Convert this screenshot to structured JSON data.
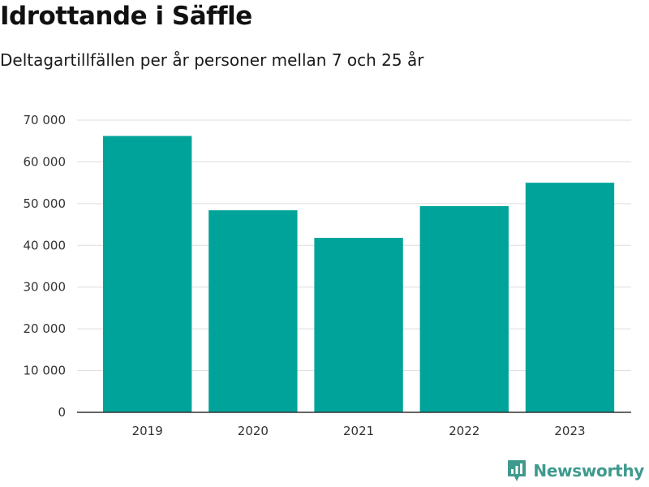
{
  "header": {
    "title": "Idrottande i Säffle",
    "subtitle": "Deltagartillfällen per år personer mellan 7 och 25 år"
  },
  "brand": {
    "name": "Newsworthy",
    "icon": "newsworthy-logo-icon",
    "color": "#3f9a8e"
  },
  "chart_data": {
    "type": "bar",
    "title": "Idrottande i Säffle",
    "subtitle": "Deltagartillfällen per år personer mellan 7 och 25 år",
    "categories": [
      "2019",
      "2020",
      "2021",
      "2022",
      "2023"
    ],
    "values": [
      66200,
      48400,
      41800,
      49400,
      55000
    ],
    "ylim": [
      0,
      70000
    ],
    "yticks": [
      0,
      10000,
      20000,
      30000,
      40000,
      50000,
      60000,
      70000
    ],
    "ytick_labels": [
      "0",
      "10 000",
      "20 000",
      "30 000",
      "40 000",
      "50 000",
      "60 000",
      "70 000"
    ],
    "xlabel": "",
    "ylabel": "",
    "grid": true,
    "bar_color": "#00a399"
  }
}
